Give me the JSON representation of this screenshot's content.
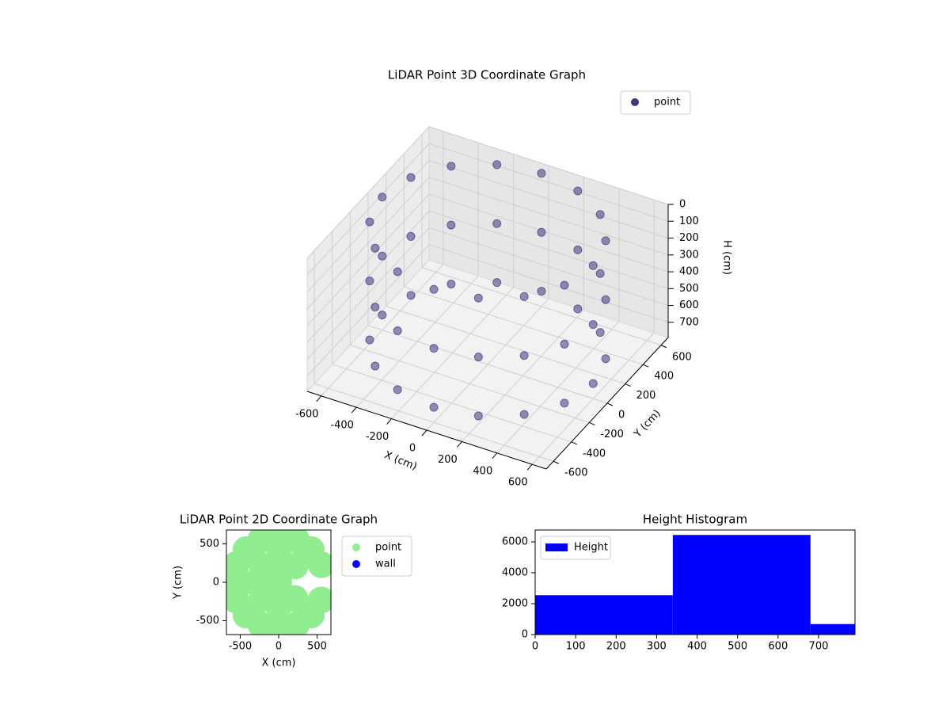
{
  "chart_data": [
    {
      "type": "scatter3d",
      "title": "LiDAR Point 3D Coordinate Graph",
      "xlabel": "X (cm)",
      "ylabel": "Y (cm)",
      "zlabel": "H (cm)",
      "xlim": [
        -680,
        680
      ],
      "ylim": [
        -680,
        680
      ],
      "zlim": [
        790,
        0
      ],
      "xticks": [
        -600,
        -400,
        -200,
        0,
        200,
        400,
        600
      ],
      "yticks": [
        -600,
        -400,
        -200,
        0,
        200,
        400,
        600
      ],
      "zticks": [
        0,
        100,
        200,
        300,
        400,
        500,
        600,
        700
      ],
      "grid": true,
      "legend": "upper right",
      "series": [
        {
          "name": "point",
          "color": "#46327e",
          "x": [
            600,
            554,
            424,
            230,
            0,
            -230,
            -424,
            -554,
            -600,
            -554,
            -424,
            -230,
            0,
            230,
            424,
            554,
            600,
            554,
            424,
            230,
            0,
            -230,
            -424,
            -554,
            -600,
            -554,
            -424,
            -230,
            0,
            230,
            424,
            554,
            600,
            554,
            424,
            230,
            0,
            -230,
            -424,
            -554,
            -600,
            -554,
            -424,
            -230,
            0,
            230,
            424,
            554
          ],
          "y": [
            0,
            230,
            424,
            554,
            600,
            554,
            424,
            230,
            0,
            -230,
            -424,
            -554,
            -600,
            -554,
            -424,
            -230,
            0,
            230,
            424,
            554,
            600,
            554,
            424,
            230,
            0,
            -230,
            -424,
            -554,
            -600,
            -554,
            -424,
            -230,
            0,
            230,
            424,
            554,
            600,
            554,
            424,
            230,
            0,
            -230,
            -424,
            -554,
            -600,
            -554,
            -424,
            -230
          ],
          "z": [
            0,
            0,
            0,
            0,
            0,
            0,
            0,
            0,
            0,
            0,
            0,
            0,
            0,
            0,
            0,
            0,
            350,
            350,
            350,
            350,
            350,
            350,
            350,
            350,
            350,
            350,
            350,
            350,
            350,
            350,
            350,
            350,
            700,
            700,
            700,
            700,
            700,
            700,
            700,
            700,
            700,
            700,
            700,
            700,
            700,
            700,
            700,
            700
          ]
        }
      ]
    },
    {
      "type": "scatter",
      "title": "LiDAR Point 2D Coordinate Graph",
      "xlabel": "X (cm)",
      "ylabel": "Y (cm)",
      "xlim": [
        -680,
        680
      ],
      "ylim": [
        -680,
        680
      ],
      "xticks": [
        -500,
        0,
        500
      ],
      "yticks": [
        -500,
        0,
        500
      ],
      "legend": "outside right",
      "series": [
        {
          "name": "point",
          "color": "#90ee90",
          "x": [
            554,
            424,
            230,
            0,
            -230,
            -424,
            -554,
            -600,
            -554,
            -424,
            -230,
            0,
            230,
            424,
            554,
            212,
            0,
            -212,
            -300,
            -212,
            0,
            212,
            0
          ],
          "y": [
            230,
            424,
            554,
            600,
            554,
            424,
            230,
            0,
            -230,
            -424,
            -554,
            -600,
            -554,
            -424,
            -230,
            212,
            300,
            212,
            0,
            -212,
            -300,
            -212,
            0
          ]
        },
        {
          "name": "wall",
          "color": "#0000ff",
          "x": [],
          "y": []
        }
      ]
    },
    {
      "type": "histogram",
      "title": "Height Histogram",
      "bins": [
        0,
        340,
        680,
        790
      ],
      "xlim": [
        0,
        790
      ],
      "ylim": [
        0,
        6770
      ],
      "xticks": [
        0,
        100,
        200,
        300,
        400,
        500,
        600,
        700
      ],
      "yticks": [
        0,
        2000,
        4000,
        6000
      ],
      "legend": "upper left",
      "series": [
        {
          "name": "Height",
          "color": "#0000ff",
          "values": [
            2550,
            6450,
            680
          ]
        }
      ]
    }
  ]
}
